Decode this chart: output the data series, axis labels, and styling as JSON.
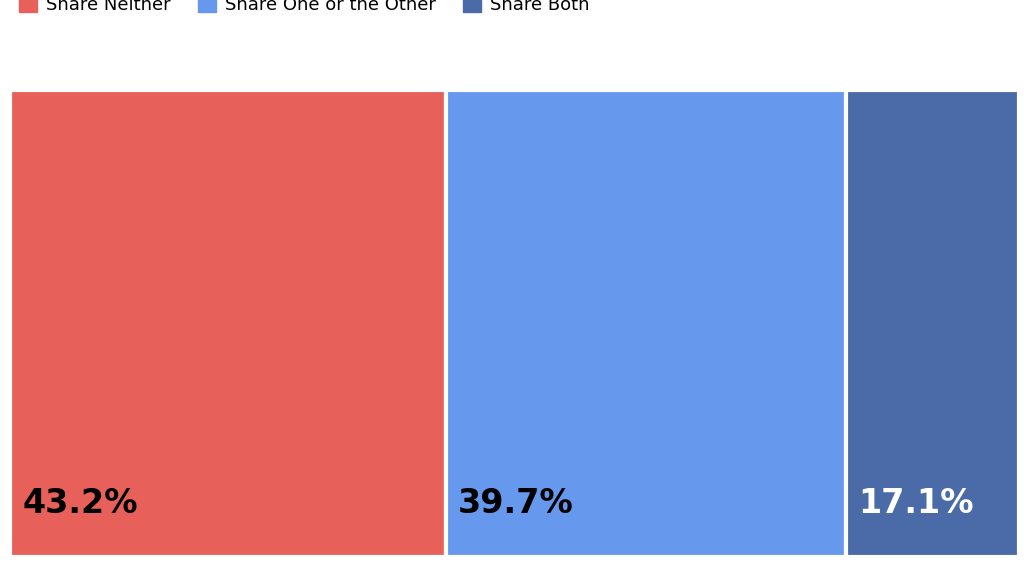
{
  "categories": [
    "Share Neither",
    "Share One or the Other",
    "Share Both"
  ],
  "values": [
    43.2,
    39.7,
    17.1
  ],
  "colors": [
    "#E8605A",
    "#6699EE",
    "#4A6AA8"
  ],
  "label_colors": [
    "#000000",
    "#000000",
    "#ffffff"
  ],
  "labels": [
    "43.2%",
    "39.7%",
    "17.1%"
  ],
  "background_color": "#ffffff",
  "bar_edge_color": "#ffffff",
  "bar_linewidth": 3.0,
  "label_fontsize": 24
}
